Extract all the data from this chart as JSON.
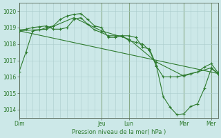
{
  "background_color": "#cce8e8",
  "grid_color": "#aacccc",
  "line_color": "#2d7a2d",
  "marker_color": "#2d7a2d",
  "xlabel": "Pression niveau de la mer( hPa )",
  "ylim": [
    1013.5,
    1020.5
  ],
  "yticks": [
    1014,
    1015,
    1016,
    1017,
    1018,
    1019,
    1020
  ],
  "xlim": [
    0,
    174
  ],
  "day_labels": [
    "Dim",
    "Jeu",
    "Lun",
    "Mar",
    "Mer"
  ],
  "day_positions": [
    0,
    72,
    96,
    144,
    168
  ],
  "series": [
    {
      "x": [
        0,
        6,
        12,
        18,
        24,
        30,
        36,
        42,
        48,
        54,
        60,
        66,
        72,
        78,
        84,
        90,
        96,
        102,
        108,
        114,
        120,
        126,
        132,
        138,
        144,
        150,
        156,
        162,
        168,
        174
      ],
      "y": [
        1016.3,
        1017.5,
        1018.8,
        1018.85,
        1019.0,
        1019.1,
        1019.5,
        1019.7,
        1019.8,
        1019.85,
        1019.5,
        1019.1,
        1019.0,
        1018.4,
        1018.4,
        1018.5,
        1018.5,
        1018.4,
        1017.8,
        1017.7,
        1016.7,
        1014.8,
        1014.15,
        1013.7,
        1013.75,
        1014.2,
        1014.35,
        1015.3,
        1016.5,
        1016.2
      ]
    },
    {
      "x": [
        0,
        6,
        12,
        18,
        24,
        30,
        36,
        42,
        48,
        54,
        60,
        66,
        72,
        78,
        84,
        90,
        96,
        102,
        108,
        114,
        120,
        126,
        132,
        138,
        144,
        150,
        156,
        162,
        168,
        174
      ],
      "y": [
        1018.85,
        1018.9,
        1019.0,
        1019.05,
        1019.1,
        1018.9,
        1018.9,
        1019.0,
        1019.5,
        1019.6,
        1019.2,
        1018.85,
        1018.7,
        1018.5,
        1018.5,
        1018.5,
        1018.2,
        1018.1,
        1018.0,
        1017.6,
        1016.65,
        1016.0,
        1016.0,
        1016.0,
        1016.1,
        1016.2,
        1016.3,
        1016.6,
        1016.8,
        1016.25
      ]
    },
    {
      "x": [
        0,
        24,
        48,
        72,
        96,
        120,
        144,
        168,
        174
      ],
      "y": [
        1018.8,
        1018.9,
        1019.6,
        1018.8,
        1018.3,
        1016.9,
        1016.05,
        1016.55,
        1016.2
      ]
    },
    {
      "x": [
        0,
        174
      ],
      "y": [
        1018.8,
        1016.2
      ]
    }
  ]
}
